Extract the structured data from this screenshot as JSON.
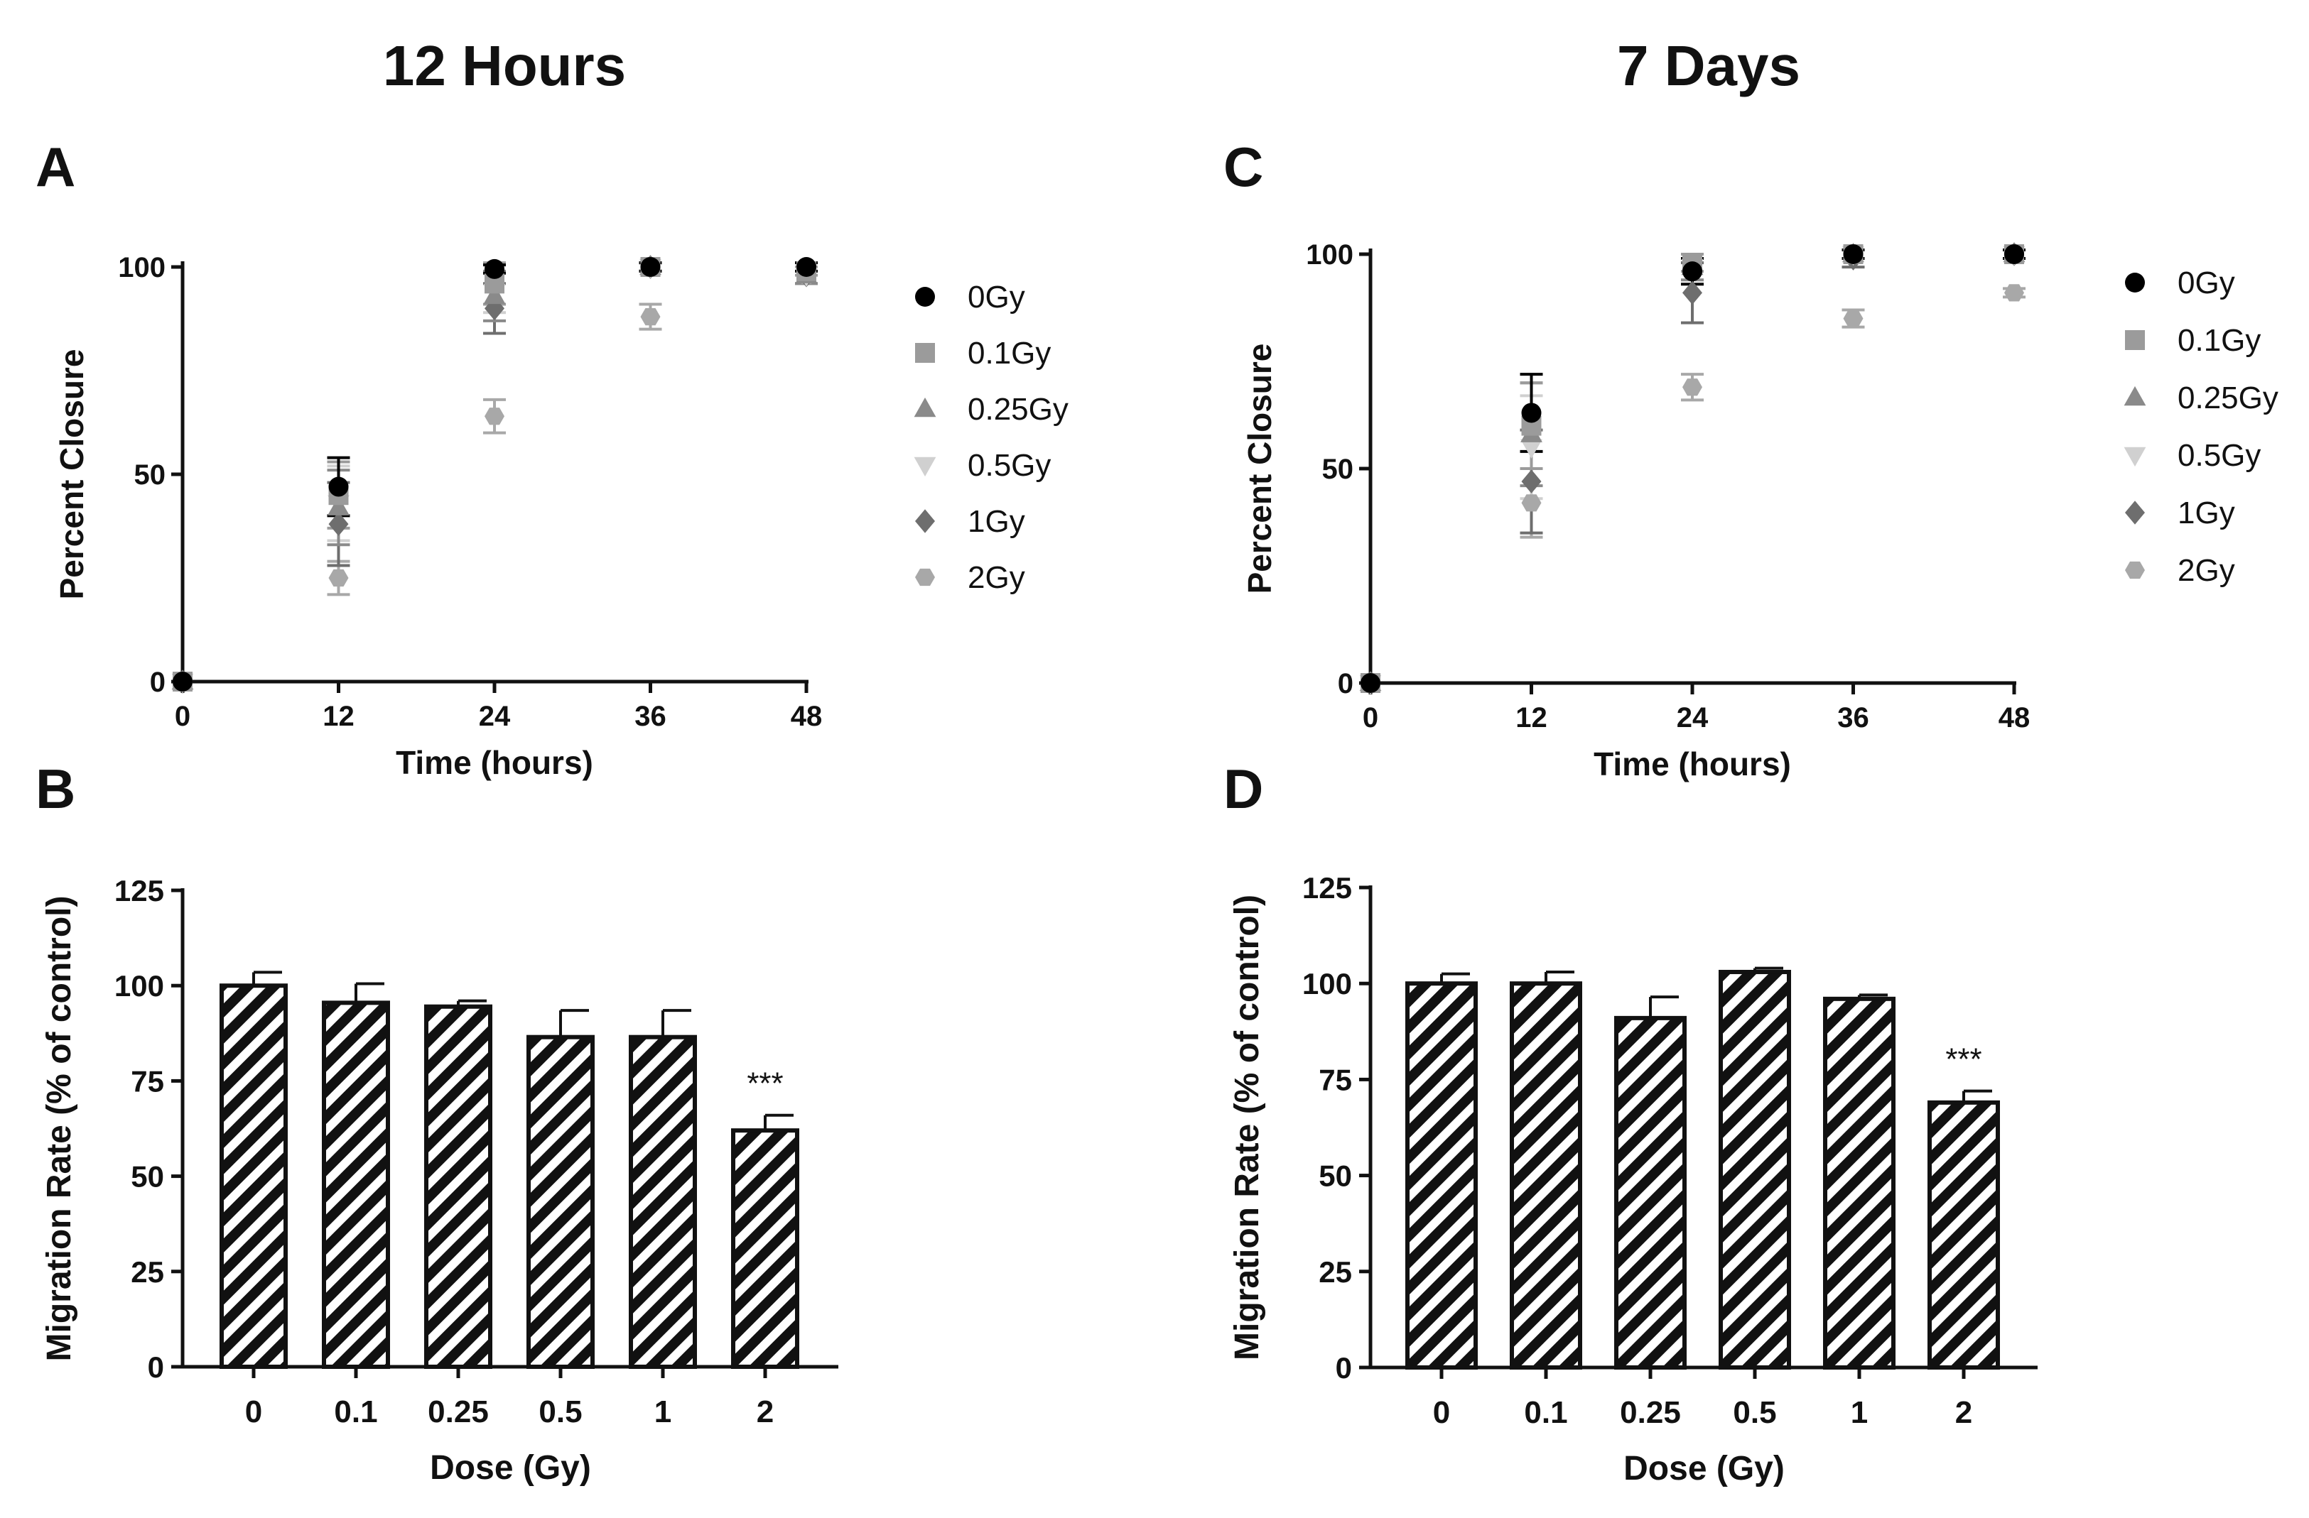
{
  "figure": {
    "column_titles": [
      "12 Hours",
      "7 Days"
    ],
    "panel_letters": [
      "A",
      "B",
      "C",
      "D"
    ]
  },
  "colors": {
    "ink": "#111111",
    "0Gy": "#000000",
    "0.1Gy": "#9b9b9b",
    "0.25Gy": "#8a8a8a",
    "0.5Gy": "#d0d0d0",
    "1Gy": "#6e6e6e",
    "2Gy": "#a8a8a8"
  },
  "chart_data": [
    {
      "panel": "A",
      "type": "scatter",
      "title": "",
      "xlabel": "Time (hours)",
      "ylabel": "Percent Closure",
      "x": [
        0,
        12,
        24,
        36,
        48
      ],
      "xticks": [
        "0",
        "12",
        "24",
        "36",
        "48"
      ],
      "yticks": [
        "0",
        "50",
        "100"
      ],
      "xlim": [
        0,
        48
      ],
      "ylim": [
        0,
        100
      ],
      "legend_position": "right",
      "series": [
        {
          "name": "0Gy",
          "marker": "circle",
          "values": [
            0,
            47,
            99.5,
            100,
            100
          ],
          "errors": [
            0,
            7,
            1,
            1,
            1
          ]
        },
        {
          "name": "0.1Gy",
          "marker": "square",
          "values": [
            0,
            45,
            96,
            100,
            99
          ],
          "errors": [
            0,
            8,
            5,
            1,
            1
          ]
        },
        {
          "name": "0.25Gy",
          "marker": "triangle-up",
          "values": [
            0,
            42,
            93,
            100,
            98
          ],
          "errors": [
            0,
            9,
            6,
            1,
            2
          ]
        },
        {
          "name": "0.5Gy",
          "marker": "triangle-down",
          "values": [
            0,
            43,
            94,
            100,
            98
          ],
          "errors": [
            0,
            9,
            5,
            1,
            2
          ]
        },
        {
          "name": "1Gy",
          "marker": "diamond",
          "values": [
            0,
            38,
            90,
            100,
            98
          ],
          "errors": [
            0,
            10,
            6,
            1,
            2
          ]
        },
        {
          "name": "2Gy",
          "marker": "hexagon",
          "values": [
            0,
            25,
            64,
            88,
            98
          ],
          "errors": [
            0,
            4,
            4,
            3,
            2
          ]
        }
      ]
    },
    {
      "panel": "B",
      "type": "bar",
      "title": "",
      "xlabel": "Dose (Gy)",
      "ylabel": "Migration Rate (% of control)",
      "categories": [
        "0",
        "0.1",
        "0.25",
        "0.5",
        "1",
        "2"
      ],
      "values": [
        100,
        95.5,
        94.5,
        86.5,
        86.5,
        62
      ],
      "errors": [
        3.5,
        5,
        1.5,
        7,
        7,
        4
      ],
      "yticks": [
        "0",
        "25",
        "50",
        "75",
        "100",
        "125"
      ],
      "ylim": [
        0,
        125
      ],
      "annotations": [
        {
          "category": "2",
          "text": "***"
        }
      ]
    },
    {
      "panel": "C",
      "type": "scatter",
      "title": "",
      "xlabel": "Time (hours)",
      "ylabel": "Percent Closure",
      "x": [
        0,
        12,
        24,
        36,
        48
      ],
      "xticks": [
        "0",
        "12",
        "24",
        "36",
        "48"
      ],
      "yticks": [
        "0",
        "50",
        "100"
      ],
      "xlim": [
        0,
        48
      ],
      "ylim": [
        0,
        100
      ],
      "legend_position": "right",
      "series": [
        {
          "name": "0Gy",
          "marker": "circle",
          "values": [
            0,
            63,
            96,
            100,
            100
          ],
          "errors": [
            0,
            9,
            3,
            1,
            1
          ]
        },
        {
          "name": "0.1Gy",
          "marker": "square",
          "values": [
            0,
            60,
            98,
            100,
            100
          ],
          "errors": [
            0,
            10,
            2,
            1,
            1
          ]
        },
        {
          "name": "0.25Gy",
          "marker": "triangle-up",
          "values": [
            0,
            58,
            97,
            100,
            100
          ],
          "errors": [
            0,
            12,
            3,
            1,
            1
          ]
        },
        {
          "name": "0.5Gy",
          "marker": "triangle-down",
          "values": [
            0,
            55,
            97,
            100,
            100
          ],
          "errors": [
            0,
            12,
            3,
            1,
            1
          ]
        },
        {
          "name": "1Gy",
          "marker": "diamond",
          "values": [
            0,
            47,
            91,
            99,
            100
          ],
          "errors": [
            0,
            12,
            7,
            2,
            1
          ]
        },
        {
          "name": "2Gy",
          "marker": "hexagon",
          "values": [
            0,
            42,
            69,
            85,
            91
          ],
          "errors": [
            0,
            8,
            3,
            2,
            1
          ]
        }
      ]
    },
    {
      "panel": "D",
      "type": "bar",
      "title": "",
      "xlabel": "Dose (Gy)",
      "ylabel": "Migration Rate (% of control)",
      "categories": [
        "0",
        "0.1",
        "0.25",
        "0.5",
        "1",
        "2"
      ],
      "values": [
        100,
        100,
        91,
        103,
        96,
        69
      ],
      "errors": [
        2.5,
        3,
        5.5,
        1,
        1,
        3
      ],
      "yticks": [
        "0",
        "25",
        "50",
        "75",
        "100",
        "125"
      ],
      "ylim": [
        0,
        125
      ],
      "annotations": [
        {
          "category": "2",
          "text": "***"
        }
      ]
    }
  ]
}
